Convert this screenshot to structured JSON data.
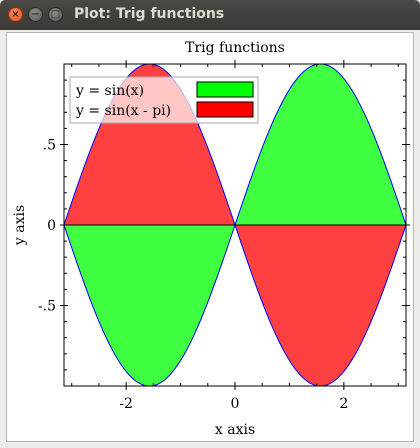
{
  "window": {
    "title": "Plot: Trig functions",
    "close_glyph": "×",
    "minimize_glyph": "−",
    "maximize_glyph": "□"
  },
  "chart_data": {
    "type": "area",
    "title": "Trig functions",
    "xlabel": "x axis",
    "ylabel": "y axis",
    "xlim": [
      -3.14159,
      3.14159
    ],
    "ylim": [
      -1,
      1
    ],
    "x_ticks": [
      -2,
      0,
      2
    ],
    "x_tick_labels": [
      "-2",
      "0",
      "2"
    ],
    "y_ticks": [
      -0.5,
      0,
      0.5
    ],
    "y_tick_labels": [
      "-.5",
      "0",
      ".5"
    ],
    "legend_position": "top-left",
    "baseline": 0,
    "grid": false,
    "series": [
      {
        "name": "y = sin(x)",
        "color": "#00ff00",
        "function": "sin(x)"
      },
      {
        "name": "y = sin(x - pi)",
        "color": "#ff0000",
        "function": "sin(x - pi)"
      }
    ],
    "outline_color": "#0000ff"
  }
}
